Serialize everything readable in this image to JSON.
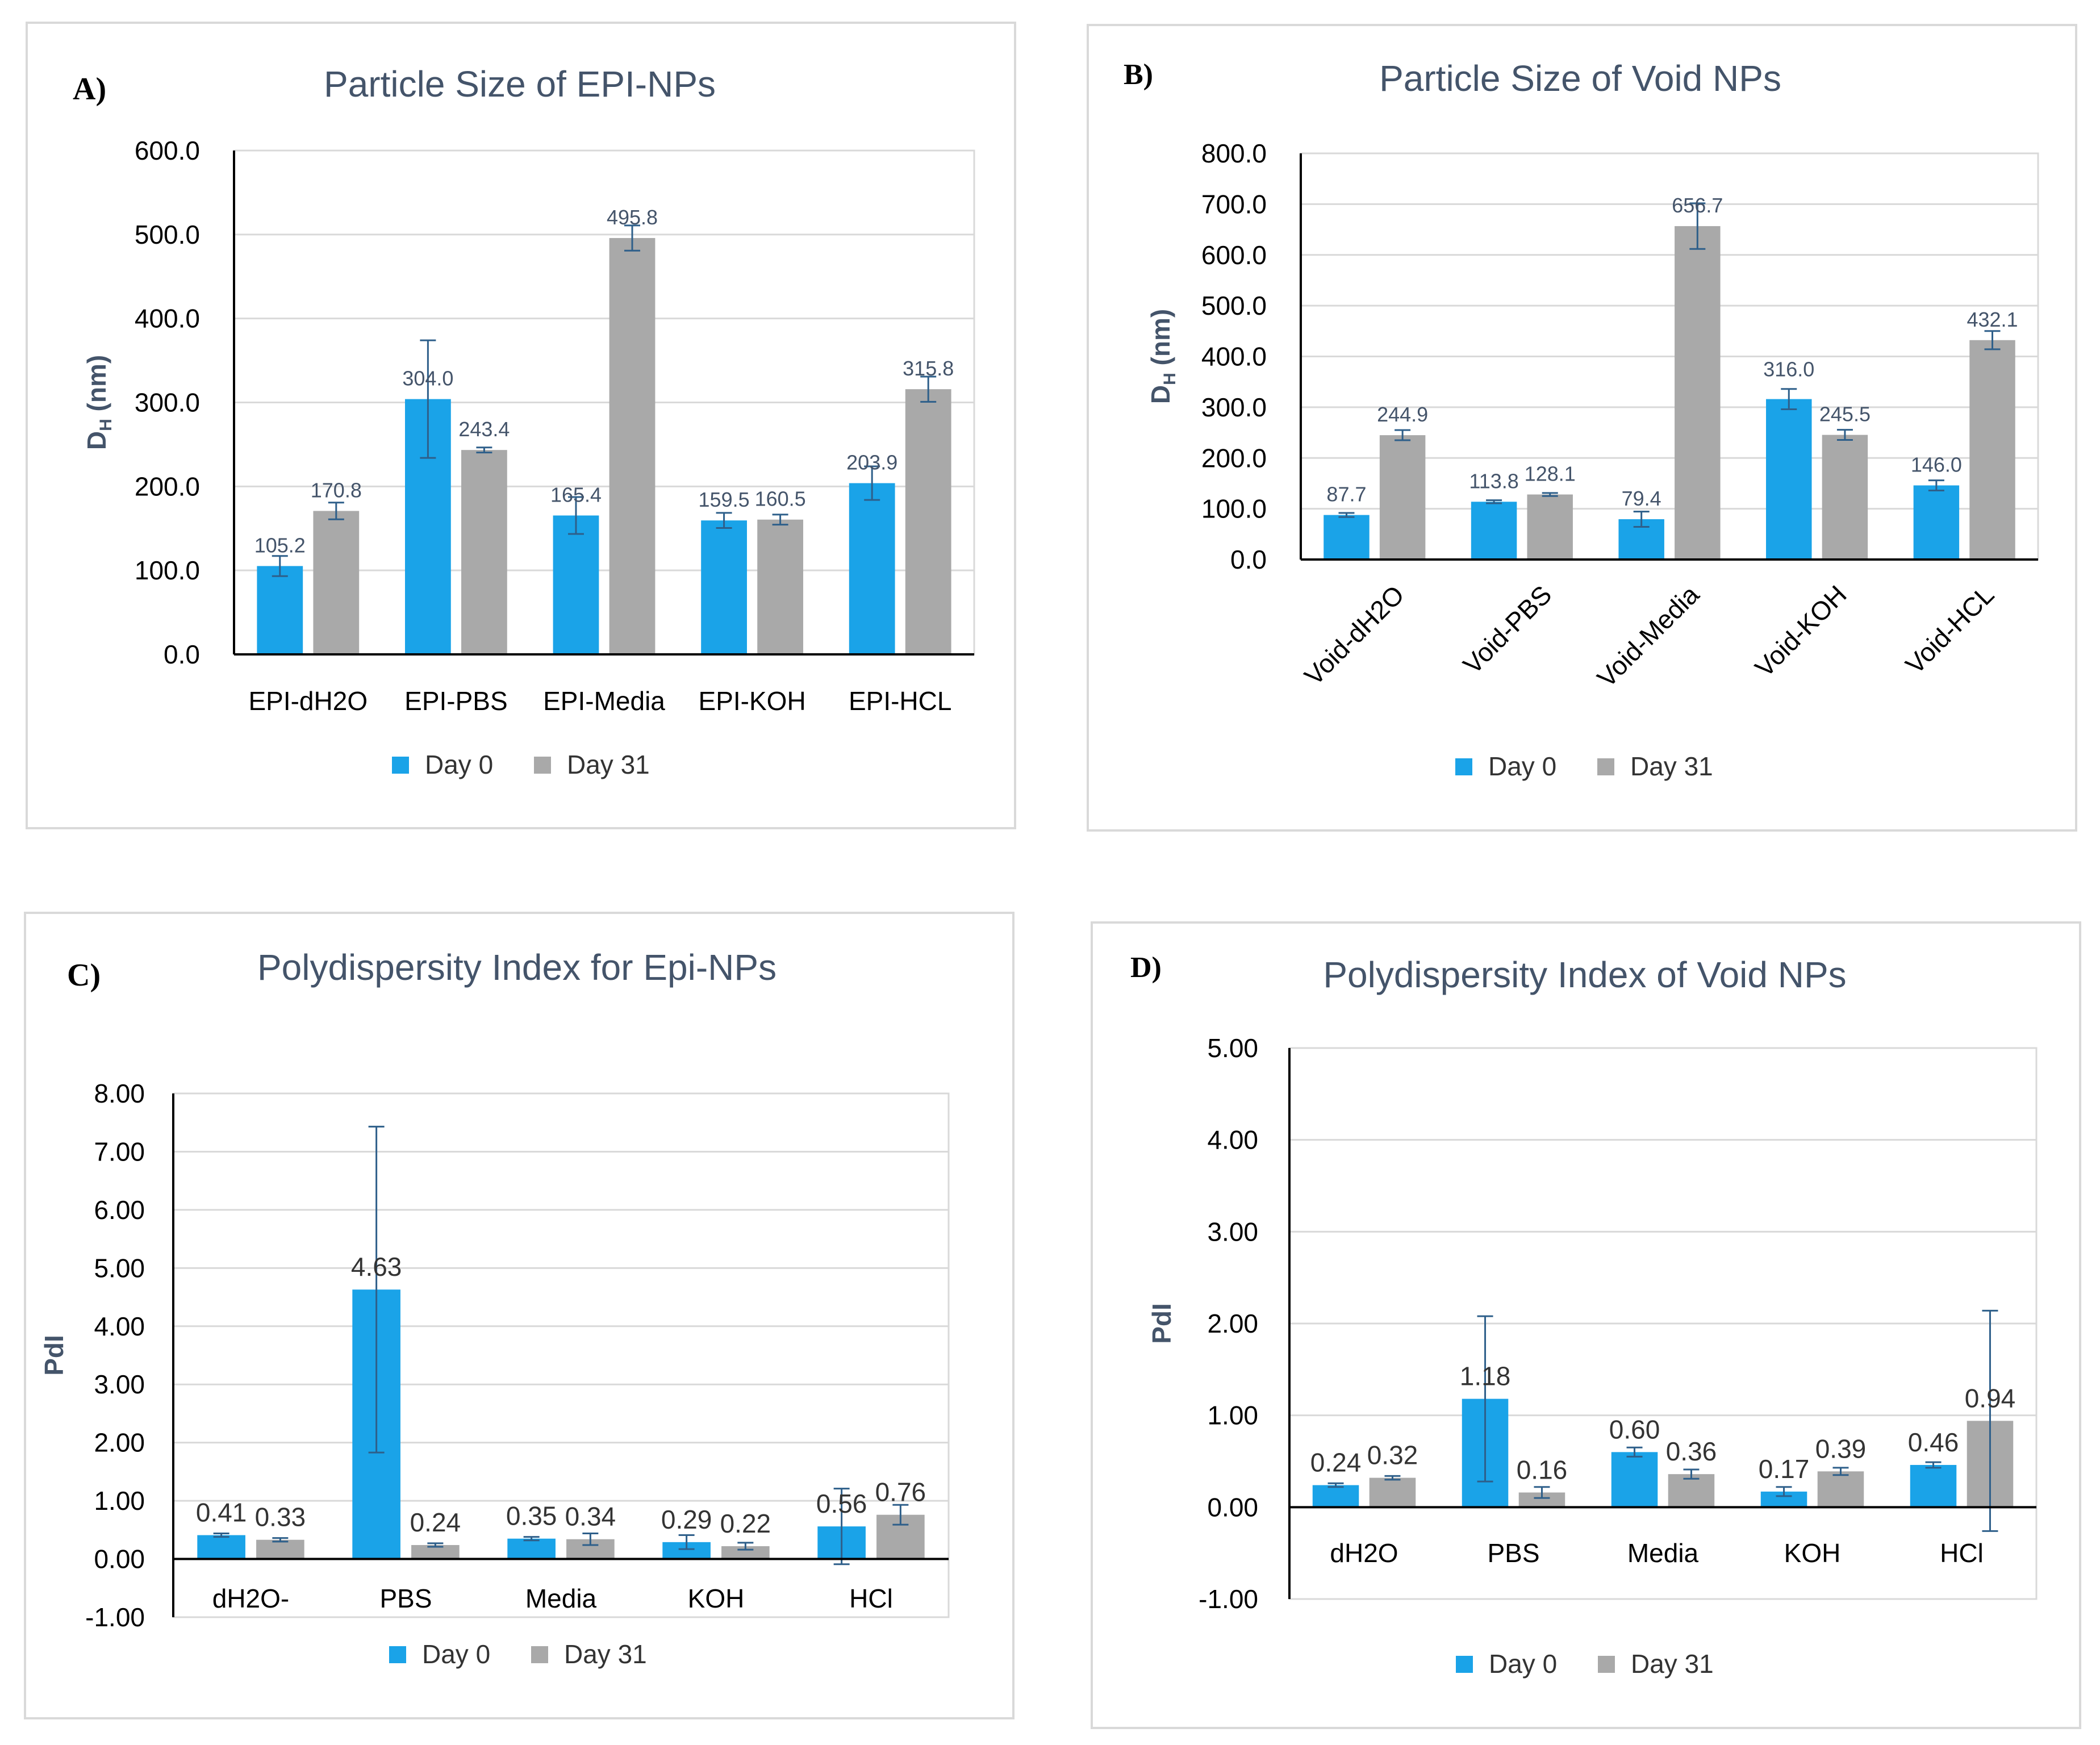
{
  "colors": {
    "day0": "#1AA3E8",
    "day31": "#A9A9A9",
    "axis": "#000000",
    "grid": "#D9D9D9",
    "text": "#44546A",
    "panel_border": "#D9D9D9",
    "errbar": "#2E5F8A"
  },
  "legend": {
    "day0": "Day 0",
    "day31": "Day 31"
  },
  "charts": [
    {
      "panel_label": "A)",
      "chart_data": {
        "type": "bar",
        "title": "Particle Size of EPI-NPs",
        "ylabel_main": "D",
        "ylabel_sub": "H",
        "ylabel_unit": " (nm)",
        "xlabel": "",
        "ylim": [
          0,
          600
        ],
        "ytick_step": 100,
        "ytick_decimals": 1,
        "categories": [
          "EPI-dH2O",
          "EPI-PBS",
          "EPI-Media",
          "EPI-KOH",
          "EPI-HCL"
        ],
        "series": [
          {
            "name": "Day 0",
            "values": [
              105.2,
              304.0,
              165.4,
              159.5,
              203.9
            ],
            "errors": [
              12,
              70,
              22,
              9,
              20
            ],
            "labels": [
              "105.2",
              "304.0",
              "165.4",
              "159.5",
              "203.9"
            ]
          },
          {
            "name": "Day 31",
            "values": [
              170.8,
              243.4,
              495.8,
              160.5,
              315.8
            ],
            "errors": [
              10,
              3,
              15,
              6,
              15
            ],
            "labels": [
              "170.8",
              "243.4",
              "495.8",
              "160.5",
              "315.8"
            ]
          }
        ],
        "rotate_x": false,
        "legend_position": "bottom"
      }
    },
    {
      "panel_label": "B)",
      "chart_data": {
        "type": "bar",
        "title": "Particle Size of Void NPs",
        "ylabel_main": "D",
        "ylabel_sub": "H",
        "ylabel_unit": " (nm)",
        "xlabel": "",
        "ylim": [
          0,
          800
        ],
        "ytick_step": 100,
        "ytick_decimals": 1,
        "categories": [
          "Void-dH2O",
          "Void-PBS",
          "Void-Media",
          "Void-KOH",
          "Void-HCL"
        ],
        "series": [
          {
            "name": "Day 0",
            "values": [
              87.7,
              113.8,
              79.4,
              316.0,
              146.0
            ],
            "errors": [
              4,
              3,
              15,
              20,
              10
            ],
            "labels": [
              "87.7",
              "113.8",
              "79.4",
              "316.0",
              "146.0"
            ]
          },
          {
            "name": "Day 31",
            "values": [
              244.9,
              128.1,
              656.7,
              245.5,
              432.1
            ],
            "errors": [
              10,
              3,
              45,
              10,
              18
            ],
            "labels": [
              "244.9",
              "128.1",
              "656.7",
              "245.5",
              "432.1"
            ]
          }
        ],
        "rotate_x": true,
        "legend_position": "bottom"
      }
    },
    {
      "panel_label": "C)",
      "chart_data": {
        "type": "bar",
        "title": "Polydispersity Index for Epi-NPs",
        "ylabel_main": "PdI",
        "ylabel_sub": "",
        "ylabel_unit": "",
        "xlabel": "",
        "ylim": [
          -1,
          8
        ],
        "ytick_step": 1,
        "ytick_decimals": 2,
        "categories": [
          "dH2O-",
          "PBS",
          "Media",
          "KOH",
          "HCl"
        ],
        "series": [
          {
            "name": "Day 0",
            "values": [
              0.41,
              4.63,
              0.35,
              0.29,
              0.56
            ],
            "errors": [
              0.03,
              2.8,
              0.03,
              0.12,
              0.65
            ],
            "labels": [
              "0.41",
              "4.63",
              "0.35",
              "0.29",
              "0.56"
            ]
          },
          {
            "name": "Day 31",
            "values": [
              0.33,
              0.24,
              0.34,
              0.22,
              0.76
            ],
            "errors": [
              0.03,
              0.03,
              0.1,
              0.06,
              0.17
            ],
            "labels": [
              "0.33",
              "0.24",
              "0.34",
              "0.22",
              "0.76"
            ]
          }
        ],
        "rotate_x": false,
        "legend_position": "bottom"
      }
    },
    {
      "panel_label": "D)",
      "chart_data": {
        "type": "bar",
        "title": "Polydispersity Index of Void NPs",
        "ylabel_main": "PdI",
        "ylabel_sub": "",
        "ylabel_unit": "",
        "xlabel": "",
        "ylim": [
          -1,
          5
        ],
        "ytick_step": 1,
        "ytick_decimals": 2,
        "categories": [
          "dH2O",
          "PBS",
          "Media",
          "KOH",
          "HCl"
        ],
        "series": [
          {
            "name": "Day 0",
            "values": [
              0.24,
              1.18,
              0.6,
              0.17,
              0.46
            ],
            "errors": [
              0.02,
              0.9,
              0.05,
              0.05,
              0.03
            ],
            "labels": [
              "0.24",
              "1.18",
              "0.60",
              "0.17",
              "0.46"
            ]
          },
          {
            "name": "Day 31",
            "values": [
              0.32,
              0.16,
              0.36,
              0.39,
              0.94
            ],
            "errors": [
              0.02,
              0.06,
              0.05,
              0.04,
              1.2
            ],
            "labels": [
              "0.32",
              "0.16",
              "0.36",
              "0.39",
              "0.94"
            ]
          }
        ],
        "rotate_x": false,
        "legend_position": "bottom"
      }
    }
  ]
}
